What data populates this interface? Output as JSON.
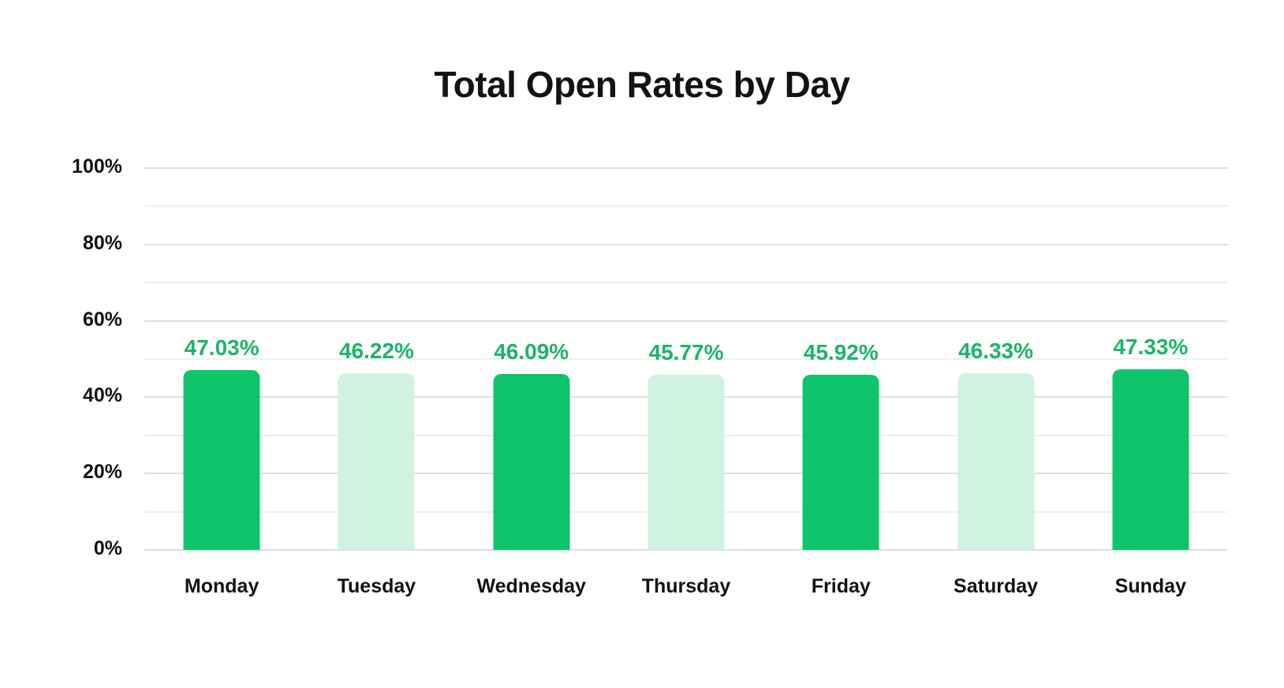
{
  "chart_data": {
    "type": "bar",
    "title": "Total Open Rates by Day",
    "categories": [
      "Monday",
      "Tuesday",
      "Wednesday",
      "Thursday",
      "Friday",
      "Saturday",
      "Sunday"
    ],
    "values": [
      47.03,
      46.22,
      46.09,
      45.77,
      45.92,
      46.33,
      47.33
    ],
    "value_labels": [
      "47.03%",
      "46.22%",
      "46.09%",
      "45.77%",
      "45.92%",
      "46.33%",
      "47.33%"
    ],
    "bar_colors": [
      "#0ec46b",
      "#cff2e1",
      "#0ec46b",
      "#cff2e1",
      "#0ec46b",
      "#cff2e1",
      "#0ec46b"
    ],
    "xlabel": "",
    "ylabel": "",
    "ylim": [
      0,
      100
    ],
    "y_major_ticks": [
      0,
      20,
      40,
      60,
      80,
      100
    ],
    "y_major_tick_labels": [
      "0%",
      "20%",
      "40%",
      "60%",
      "80%",
      "100%"
    ],
    "y_minor_ticks": [
      10,
      30,
      50,
      70,
      90
    ],
    "grid": "horizontal",
    "legend": "none",
    "colors": {
      "bar_dark": "#0ec46b",
      "bar_light": "#cff2e1",
      "value_label": "#1bb566",
      "gridline_major": "#dedede",
      "gridline_minor": "#f0efed",
      "text": "#111316",
      "background": "#ffffff"
    }
  }
}
